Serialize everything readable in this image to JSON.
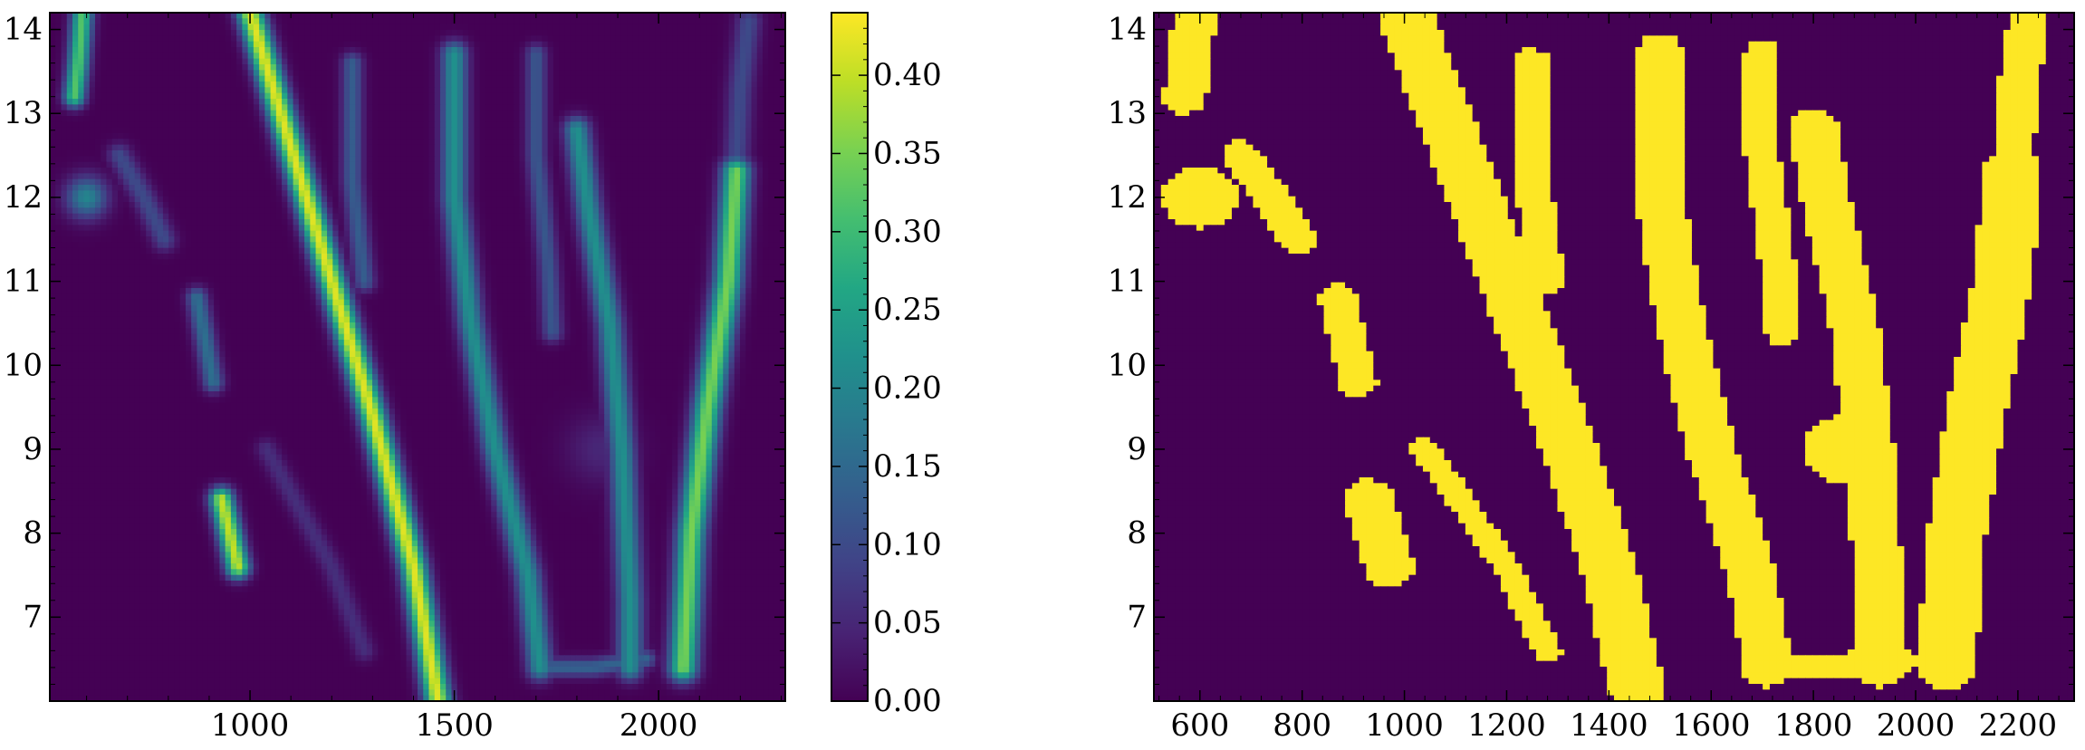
{
  "chart_data": [
    {
      "type": "heatmap",
      "title": "",
      "xlabel": "",
      "ylabel": "",
      "xlim": [
        510,
        2310
      ],
      "ylim": [
        6.0,
        14.2
      ],
      "xticks": [
        1000,
        1500,
        2000
      ],
      "xtick_labels": [
        "1000",
        "1500",
        "2000"
      ],
      "yticks": [
        7,
        8,
        9,
        10,
        11,
        12,
        13,
        14
      ],
      "ytick_labels": [
        "7",
        "8",
        "9",
        "10",
        "11",
        "12",
        "13",
        "14"
      ],
      "colormap": "viridis",
      "colorbar": {
        "range": [
          0.0,
          0.44
        ],
        "ticks": [
          0.0,
          0.05,
          0.1,
          0.15,
          0.2,
          0.25,
          0.3,
          0.35,
          0.4
        ],
        "tick_labels": [
          "0.00",
          "0.05",
          "0.10",
          "0.15",
          "0.20",
          "0.25",
          "0.30",
          "0.35",
          "0.40"
        ]
      },
      "ridges": [
        {
          "name": "",
          "points": [
            [
              1000,
              14.2
            ],
            [
              1100,
              12.6
            ],
            [
              1200,
              11.0
            ],
            [
              1300,
              9.4
            ],
            [
              1400,
              7.6
            ],
            [
              1460,
              6.0
            ]
          ],
          "peak": 0.42,
          "width": 22
        },
        {
          "name": "",
          "points": [
            [
              1040,
              9.0
            ],
            [
              1200,
              7.6
            ],
            [
              1280,
              6.6
            ]
          ],
          "peak": 0.06,
          "width": 18
        },
        {
          "name": "",
          "points": [
            [
              1500,
              13.7
            ],
            [
              1500,
              12.0
            ],
            [
              1540,
              10.5
            ],
            [
              1600,
              9.0
            ],
            [
              1680,
              7.5
            ],
            [
              1710,
              6.4
            ]
          ],
          "peak": 0.22,
          "width": 22
        },
        {
          "name": "",
          "points": [
            [
              1250,
              13.6
            ],
            [
              1250,
              12.2
            ],
            [
              1280,
              11.0
            ]
          ],
          "peak": 0.13,
          "width": 18
        },
        {
          "name": "",
          "points": [
            [
              1700,
              13.7
            ],
            [
              1700,
              12.5
            ],
            [
              1730,
              11.2
            ],
            [
              1740,
              10.4
            ]
          ],
          "peak": 0.12,
          "width": 18
        },
        {
          "name": "",
          "points": [
            [
              1800,
              12.8
            ],
            [
              1830,
              11.8
            ],
            [
              1880,
              10.5
            ],
            [
              1910,
              9.0
            ],
            [
              1930,
              7.2
            ],
            [
              1930,
              6.4
            ]
          ],
          "peak": 0.22,
          "width": 22
        },
        {
          "name": "",
          "points": [
            [
              2190,
              12.3
            ],
            [
              2170,
              11.0
            ],
            [
              2120,
              9.5
            ],
            [
              2080,
              8.0
            ],
            [
              2060,
              6.4
            ]
          ],
          "peak": 0.35,
          "width": 24
        },
        {
          "name": "",
          "points": [
            [
              2220,
              14.1
            ],
            [
              2200,
              13.3
            ],
            [
              2190,
              12.4
            ]
          ],
          "peak": 0.1,
          "width": 22
        },
        {
          "name": "",
          "points": [
            [
              680,
              12.5
            ],
            [
              740,
              12.0
            ],
            [
              790,
              11.5
            ]
          ],
          "peak": 0.1,
          "width": 20
        },
        {
          "name": "",
          "points": [
            [
              870,
              10.8
            ],
            [
              890,
              10.3
            ],
            [
              910,
              9.8
            ]
          ],
          "peak": 0.16,
          "width": 18
        },
        {
          "name": "",
          "points": [
            [
              930,
              8.4
            ],
            [
              950,
              8.0
            ],
            [
              970,
              7.6
            ]
          ],
          "peak": 0.4,
          "width": 20
        },
        {
          "name": "",
          "points": [
            [
              590,
              14.2
            ],
            [
              580,
              13.6
            ],
            [
              570,
              13.2
            ]
          ],
          "peak": 0.32,
          "width": 18
        },
        {
          "name": "",
          "points": [
            [
              1700,
              6.4
            ],
            [
              1840,
              6.4
            ],
            [
              1970,
              6.5
            ]
          ],
          "peak": 0.14,
          "width": 16
        }
      ],
      "blobs": [
        {
          "x": 600,
          "y": 12.0,
          "peak": 0.2,
          "r": 35
        },
        {
          "x": 1860,
          "y": 9.0,
          "peak": 0.05,
          "r": 60
        }
      ]
    },
    {
      "type": "heatmap",
      "title": "",
      "xlabel": "",
      "ylabel": "",
      "xlim": [
        510,
        2310
      ],
      "ylim": [
        6.0,
        14.2
      ],
      "xticks": [
        600,
        800,
        1000,
        1200,
        1400,
        1600,
        1800,
        2000,
        2200
      ],
      "xtick_labels": [
        "600",
        "800",
        "1000",
        "1200",
        "1400",
        "1600",
        "1800",
        "2000",
        "2200"
      ],
      "yticks": [
        7,
        8,
        9,
        10,
        11,
        12,
        13,
        14
      ],
      "ytick_labels": [
        "7",
        "8",
        "9",
        "10",
        "11",
        "12",
        "13",
        "14"
      ],
      "binary_threshold": 0.02,
      "background_color": "#440154",
      "foreground_color": "#fde725"
    }
  ]
}
